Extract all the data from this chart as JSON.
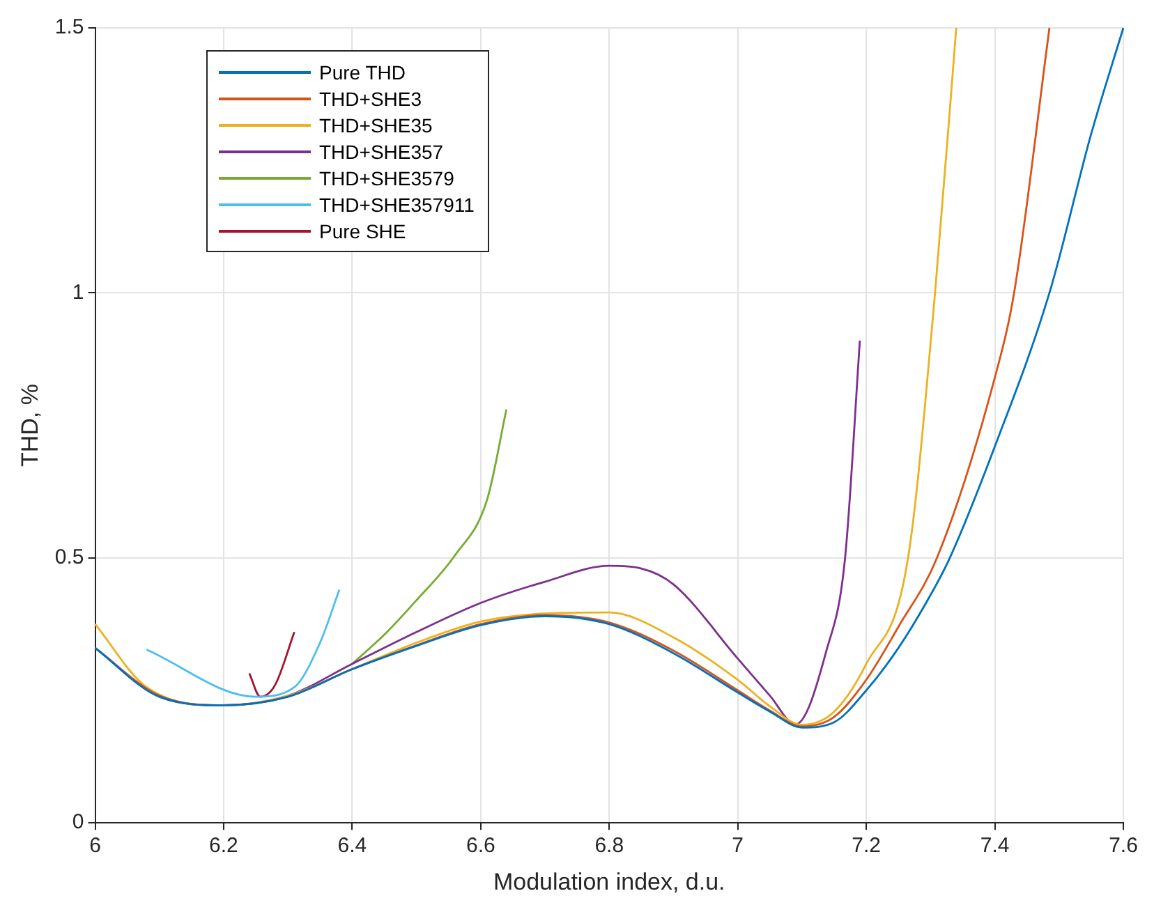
{
  "chart_data": {
    "type": "line",
    "xlabel": "Modulation index, d.u.",
    "ylabel": "THD, %",
    "xlim": [
      6,
      7.6
    ],
    "ylim": [
      0,
      1.5
    ],
    "xticks": [
      6,
      6.2,
      6.4,
      6.6,
      6.8,
      7,
      7.2,
      7.4,
      7.6
    ],
    "yticks": [
      0,
      0.5,
      1,
      1.5
    ],
    "grid": true,
    "legend": "top left",
    "marker": "none",
    "line_style": "solid",
    "series": [
      {
        "name": "Pure THD",
        "color": "#0072bd",
        "x": [
          6,
          6.1,
          6.2,
          6.3,
          6.4,
          6.5,
          6.6,
          6.7,
          6.8,
          6.9,
          7,
          7.05,
          7.1,
          7.15,
          7.2,
          7.25,
          7.3,
          7.33,
          7.4,
          7.485,
          7.55,
          7.6
        ],
        "values": [
          0.33,
          0.238,
          0.222,
          0.238,
          0.29,
          0.334,
          0.373,
          0.39,
          0.375,
          0.32,
          0.246,
          0.21,
          0.18,
          0.19,
          0.25,
          0.33,
          0.43,
          0.5,
          0.71,
          1.0,
          1.3,
          1.5
        ]
      },
      {
        "name": "THD+SHE3",
        "color": "#d95319",
        "x": [
          6,
          6.1,
          6.2,
          6.3,
          6.4,
          6.5,
          6.6,
          6.7,
          6.8,
          6.9,
          7,
          7.05,
          7.1,
          7.15,
          7.2,
          7.25,
          7.31,
          7.4,
          7.43,
          7.485
        ],
        "values": [
          0.33,
          0.24,
          0.222,
          0.238,
          0.29,
          0.335,
          0.375,
          0.392,
          0.378,
          0.325,
          0.25,
          0.212,
          0.182,
          0.2,
          0.27,
          0.37,
          0.5,
          0.84,
          1.0,
          1.5
        ]
      },
      {
        "name": "THD+SHE35",
        "color": "#edb120",
        "x": [
          6,
          6.08,
          6.2,
          6.3,
          6.4,
          6.5,
          6.6,
          6.7,
          6.8,
          6.9,
          7,
          7.05,
          7.1,
          7.15,
          7.2,
          7.265,
          7.307,
          7.34
        ],
        "values": [
          0.375,
          0.256,
          0.222,
          0.24,
          0.29,
          0.34,
          0.38,
          0.395,
          0.397,
          0.35,
          0.27,
          0.22,
          0.185,
          0.21,
          0.3,
          0.5,
          1.0,
          1.5
        ]
      },
      {
        "name": "THD+SHE357",
        "color": "#7e2f8e",
        "x": [
          6,
          6.1,
          6.2,
          6.3,
          6.4,
          6.5,
          6.6,
          6.7,
          6.8,
          6.85,
          6.9,
          7,
          7.05,
          7.09,
          7.138,
          7.167,
          7.19
        ],
        "values": [
          0.33,
          0.238,
          0.222,
          0.24,
          0.3,
          0.36,
          0.415,
          0.455,
          0.485,
          0.48,
          0.45,
          0.31,
          0.24,
          0.186,
          0.325,
          0.5,
          0.91
        ]
      },
      {
        "name": "THD+SHE3579",
        "color": "#77ac30",
        "x": [
          6.4,
          6.45,
          6.5,
          6.56,
          6.61,
          6.64
        ],
        "values": [
          0.3,
          0.355,
          0.42,
          0.505,
          0.61,
          0.78
        ]
      },
      {
        "name": "THD+SHE357911",
        "color": "#4dbeee",
        "x": [
          6.08,
          6.25,
          6.31,
          6.35,
          6.38
        ],
        "values": [
          0.327,
          0.238,
          0.256,
          0.34,
          0.44
        ]
      },
      {
        "name": "Pure SHE",
        "color": "#a2142f",
        "x": [
          6.24,
          6.257,
          6.28,
          6.31
        ],
        "values": [
          0.282,
          0.238,
          0.26,
          0.36
        ]
      }
    ]
  }
}
